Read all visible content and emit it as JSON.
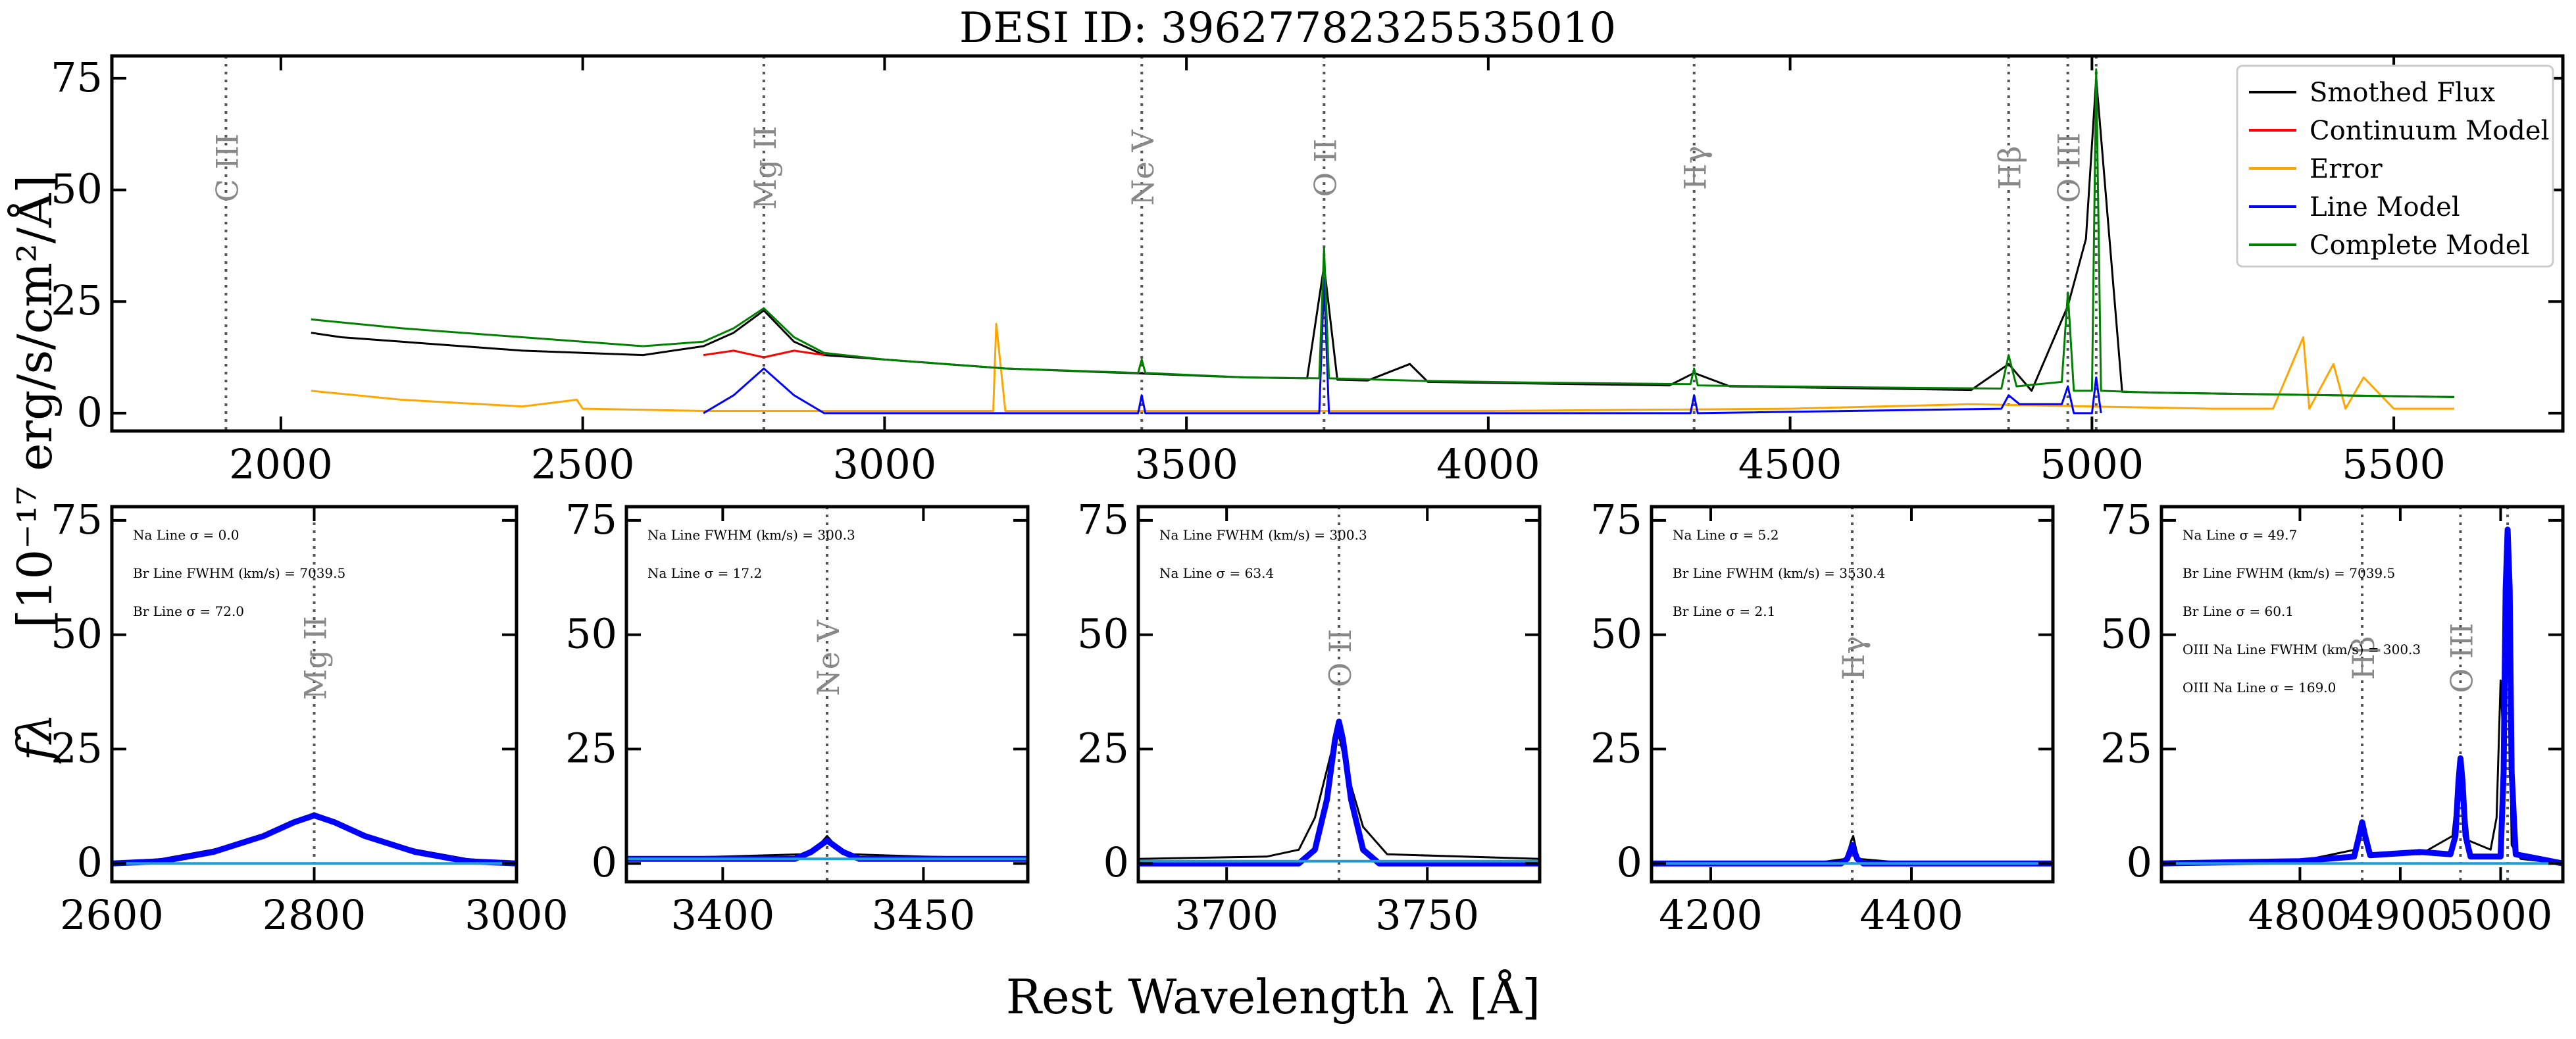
{
  "figure": {
    "title": "DESI ID: 39627782325535010",
    "xlabel": "Rest Wavelength λ [Å]",
    "ylabel_top": "[10⁻¹⁷ erg/s/cm²/Å]",
    "ylabel_symbol": "fλ"
  },
  "colors": {
    "flux": "#000000",
    "continuum": "#ff0000",
    "error": "#ffa500",
    "line_model": "#0000ff",
    "complete_model": "#008000",
    "panel_continuum": "#1f9bd6",
    "line_marker": "#555555",
    "line_label": "#888888"
  },
  "chart_data": [
    {
      "type": "line",
      "panel": "overview",
      "title": "DESI ID: 39627782325535010",
      "xlim": [
        1720,
        5780
      ],
      "ylim": [
        -4,
        80
      ],
      "xticks": [
        2000,
        2500,
        3000,
        3500,
        4000,
        4500,
        5000,
        5500
      ],
      "yticks": [
        0,
        25,
        50,
        75
      ],
      "legend_position": "top-right",
      "legend": [
        "Smothed Flux",
        "Continuum Model",
        "Error",
        "Line Model",
        "Complete Model"
      ],
      "emission_lines": [
        {
          "name": "C III",
          "x": 1909
        },
        {
          "name": "Mg II",
          "x": 2800
        },
        {
          "name": "Ne V",
          "x": 3426
        },
        {
          "name": "O II",
          "x": 3728
        },
        {
          "name": "Hγ",
          "x": 4341
        },
        {
          "name": "Hβ",
          "x": 4862
        },
        {
          "name": "O III",
          "x": 4960
        },
        {
          "name": "",
          "x": 5007
        }
      ],
      "series": [
        {
          "name": "Smothed Flux",
          "x": [
            2050,
            2100,
            2200,
            2300,
            2400,
            2500,
            2600,
            2700,
            2750,
            2800,
            2850,
            2900,
            3000,
            3100,
            3200,
            3300,
            3400,
            3500,
            3600,
            3700,
            3728,
            3750,
            3800,
            3870,
            3900,
            4000,
            4100,
            4200,
            4300,
            4341,
            4400,
            4500,
            4600,
            4700,
            4800,
            4862,
            4900,
            4960,
            4990,
            5007,
            5050,
            5100,
            5200,
            5300,
            5400,
            5500,
            5600
          ],
          "y": [
            18,
            17,
            16,
            15,
            14,
            13.5,
            13,
            15,
            18,
            23,
            16,
            13,
            12,
            11,
            10,
            9.5,
            9,
            8.5,
            8,
            7.8,
            33,
            7.5,
            7.3,
            11,
            7,
            6.8,
            6.6,
            6.4,
            6.2,
            9,
            6,
            5.8,
            5.6,
            5.4,
            5.2,
            11,
            5,
            24,
            39,
            75,
            4.8,
            4.6,
            4.4,
            4.2,
            4,
            3.8,
            3.6
          ]
        },
        {
          "name": "Continuum Model",
          "x": [
            2700,
            2750,
            2800,
            2850,
            2900
          ],
          "y": [
            13,
            14,
            12.5,
            14,
            13
          ]
        },
        {
          "name": "Error",
          "x": [
            2050,
            2200,
            2400,
            2490,
            2500,
            2700,
            3000,
            3180,
            3185,
            3200,
            3500,
            4000,
            4500,
            4800,
            5000,
            5200,
            5300,
            5350,
            5360,
            5400,
            5420,
            5450,
            5500,
            5600
          ],
          "y": [
            5,
            3,
            1.5,
            3,
            1,
            0.5,
            0.5,
            0.5,
            20,
            0.5,
            0.5,
            0.5,
            1,
            2,
            1.5,
            1,
            1,
            17,
            1,
            11,
            1,
            8,
            1,
            1
          ]
        },
        {
          "name": "Line Model",
          "x": [
            2700,
            2750,
            2800,
            2850,
            2900,
            3420,
            3426,
            3432,
            3720,
            3728,
            3736,
            4335,
            4341,
            4347,
            4850,
            4862,
            4880,
            4950,
            4960,
            4970,
            5000,
            5007,
            5015
          ],
          "y": [
            0,
            4,
            10,
            4,
            0,
            0,
            4,
            0,
            0,
            30,
            0,
            0,
            4,
            0,
            1,
            4,
            2,
            2,
            6,
            0,
            0,
            8,
            0
          ]
        },
        {
          "name": "Complete Model",
          "x": [
            2050,
            2200,
            2400,
            2600,
            2700,
            2750,
            2800,
            2850,
            2900,
            3000,
            3200,
            3420,
            3426,
            3432,
            3600,
            3720,
            3728,
            3736,
            3900,
            4100,
            4335,
            4341,
            4347,
            4600,
            4850,
            4862,
            4875,
            4950,
            4960,
            4970,
            5000,
            5007,
            5015,
            5100,
            5300,
            5600
          ],
          "y": [
            21,
            19,
            17,
            15,
            16,
            19,
            23.5,
            17,
            13.5,
            12,
            10,
            9,
            12,
            9,
            8,
            7.8,
            37,
            7.8,
            7.2,
            6.8,
            6.5,
            10,
            6.2,
            5.8,
            5.5,
            13,
            6,
            7,
            27,
            5,
            5,
            77,
            5,
            4.6,
            4.2,
            3.6
          ]
        }
      ]
    },
    {
      "type": "line",
      "panel": "Mg II",
      "xlim": [
        2600,
        3000
      ],
      "ylim": [
        -4,
        78
      ],
      "xticks": [
        2600,
        2800,
        3000
      ],
      "yticks": [
        0,
        25,
        50,
        75
      ],
      "emission_lines": [
        {
          "name": "Mg II",
          "x": 2800
        }
      ],
      "annotations": [
        "Na Line σ = 0.0",
        "Br Line FWHM (km/s) = 7039.5",
        "Br Line σ = 72.0"
      ],
      "series": [
        {
          "name": "Flux",
          "x": [
            2600,
            2650,
            2700,
            2750,
            2780,
            2800,
            2820,
            2850,
            2900,
            2950,
            3000
          ],
          "y": [
            0,
            1,
            3,
            6,
            9,
            11,
            9,
            6,
            3,
            1,
            0
          ]
        },
        {
          "name": "Line Model",
          "x": [
            2600,
            2650,
            2700,
            2750,
            2780,
            2800,
            2820,
            2850,
            2900,
            2950,
            3000
          ],
          "y": [
            0,
            0.5,
            2.5,
            6,
            9,
            10.5,
            9,
            6,
            2.5,
            0.5,
            0
          ]
        },
        {
          "name": "Continuum",
          "x": [
            2600,
            3000
          ],
          "y": [
            0,
            0
          ]
        }
      ]
    },
    {
      "type": "line",
      "panel": "Ne V",
      "xlim": [
        3376,
        3476
      ],
      "ylim": [
        -4,
        78
      ],
      "xticks": [
        3400,
        3450
      ],
      "yticks": [
        0,
        25,
        50,
        75
      ],
      "emission_lines": [
        {
          "name": "Ne V",
          "x": 3426
        }
      ],
      "annotations": [
        "Na Line FWHM (km/s) = 300.3",
        "Na Line σ = 17.2"
      ],
      "series": [
        {
          "name": "Flux",
          "x": [
            3376,
            3400,
            3420,
            3424,
            3426,
            3428,
            3432,
            3450,
            3476
          ],
          "y": [
            1,
            1.5,
            2,
            4,
            6,
            4,
            2,
            1.5,
            1
          ]
        },
        {
          "name": "Line Model",
          "x": [
            3376,
            3418,
            3422,
            3426,
            3430,
            3434,
            3476
          ],
          "y": [
            1,
            1,
            2.5,
            5,
            2.5,
            1,
            1
          ]
        },
        {
          "name": "Continuum",
          "x": [
            3376,
            3476
          ],
          "y": [
            1,
            1
          ]
        }
      ]
    },
    {
      "type": "line",
      "panel": "O II",
      "xlim": [
        3678,
        3778
      ],
      "ylim": [
        -4,
        78
      ],
      "xticks": [
        3700,
        3750
      ],
      "yticks": [
        0,
        25,
        50,
        75
      ],
      "emission_lines": [
        {
          "name": "O II",
          "x": 3728
        }
      ],
      "annotations": [
        "Na Line FWHM (km/s) = 300.3",
        "Na Line σ = 63.4"
      ],
      "series": [
        {
          "name": "Flux",
          "x": [
            3678,
            3710,
            3718,
            3722,
            3726,
            3728,
            3730,
            3734,
            3740,
            3778
          ],
          "y": [
            1,
            1.5,
            3,
            10,
            24,
            28,
            20,
            8,
            2,
            1
          ]
        },
        {
          "name": "Line Model",
          "x": [
            3678,
            3718,
            3722,
            3725,
            3727,
            3728,
            3729,
            3731,
            3734,
            3738,
            3778
          ],
          "y": [
            0,
            0,
            3,
            14,
            27,
            31,
            27,
            14,
            3,
            0,
            0
          ]
        },
        {
          "name": "Continuum",
          "x": [
            3678,
            3778
          ],
          "y": [
            0.5,
            0.5
          ]
        }
      ]
    },
    {
      "type": "line",
      "panel": "Hγ",
      "xlim": [
        4141,
        4541
      ],
      "ylim": [
        -4,
        78
      ],
      "xticks": [
        4200,
        4400
      ],
      "yticks": [
        0,
        25,
        50,
        75
      ],
      "emission_lines": [
        {
          "name": "Hγ",
          "x": 4341
        }
      ],
      "annotations": [
        "Na Line σ = 5.2",
        "Br Line FWHM (km/s) = 3530.4",
        "Br Line σ = 2.1"
      ],
      "series": [
        {
          "name": "Flux",
          "x": [
            4141,
            4300,
            4335,
            4340,
            4342,
            4347,
            4400,
            4541
          ],
          "y": [
            0,
            0,
            1,
            5,
            6,
            1,
            0,
            0
          ]
        },
        {
          "name": "Line Model",
          "x": [
            4141,
            4330,
            4336,
            4341,
            4346,
            4352,
            4541
          ],
          "y": [
            0,
            0,
            1,
            4,
            1,
            0,
            0
          ]
        },
        {
          "name": "Continuum",
          "x": [
            4141,
            4541
          ],
          "y": [
            0,
            0
          ]
        }
      ]
    },
    {
      "type": "line",
      "panel": "Hβ / O III",
      "xlim": [
        4662,
        5062
      ],
      "ylim": [
        -4,
        78
      ],
      "xticks": [
        4800,
        4900,
        5000
      ],
      "yticks": [
        0,
        25,
        50,
        75
      ],
      "emission_lines": [
        {
          "name": "Hβ",
          "x": 4862
        },
        {
          "name": "O III",
          "x": 4960
        },
        {
          "name": "",
          "x": 5007
        }
      ],
      "annotations": [
        "Na Line σ = 49.7",
        "Br Line FWHM (km/s) = 7039.5",
        "Br Line σ = 60.1",
        "OIII Na Line FWHM (km/s) = 300.3",
        "OIII Na Line σ = 169.0"
      ],
      "series": [
        {
          "name": "Flux",
          "x": [
            4662,
            4800,
            4855,
            4862,
            4870,
            4920,
            4952,
            4960,
            4968,
            4990,
            4996,
            5000,
            5004,
            5007,
            5011,
            5020,
            5062
          ],
          "y": [
            0,
            0.5,
            3,
            9,
            2,
            2,
            6,
            23,
            5,
            3,
            10,
            40,
            20,
            72,
            4,
            1,
            0
          ]
        },
        {
          "name": "Line Model",
          "x": [
            4662,
            4800,
            4854,
            4859,
            4862,
            4865,
            4870,
            4920,
            4950,
            4955,
            4958,
            4960,
            4962,
            4965,
            4970,
            5000,
            5003,
            5005,
            5007,
            5009,
            5011,
            5015,
            5062
          ],
          "y": [
            0,
            0.5,
            1.5,
            6,
            9,
            6,
            1.8,
            2.5,
            2,
            6,
            18,
            23,
            18,
            6,
            1.5,
            1.5,
            20,
            60,
            73,
            60,
            20,
            2,
            0
          ]
        },
        {
          "name": "Continuum",
          "x": [
            4662,
            5062
          ],
          "y": [
            0,
            0
          ]
        }
      ]
    }
  ]
}
